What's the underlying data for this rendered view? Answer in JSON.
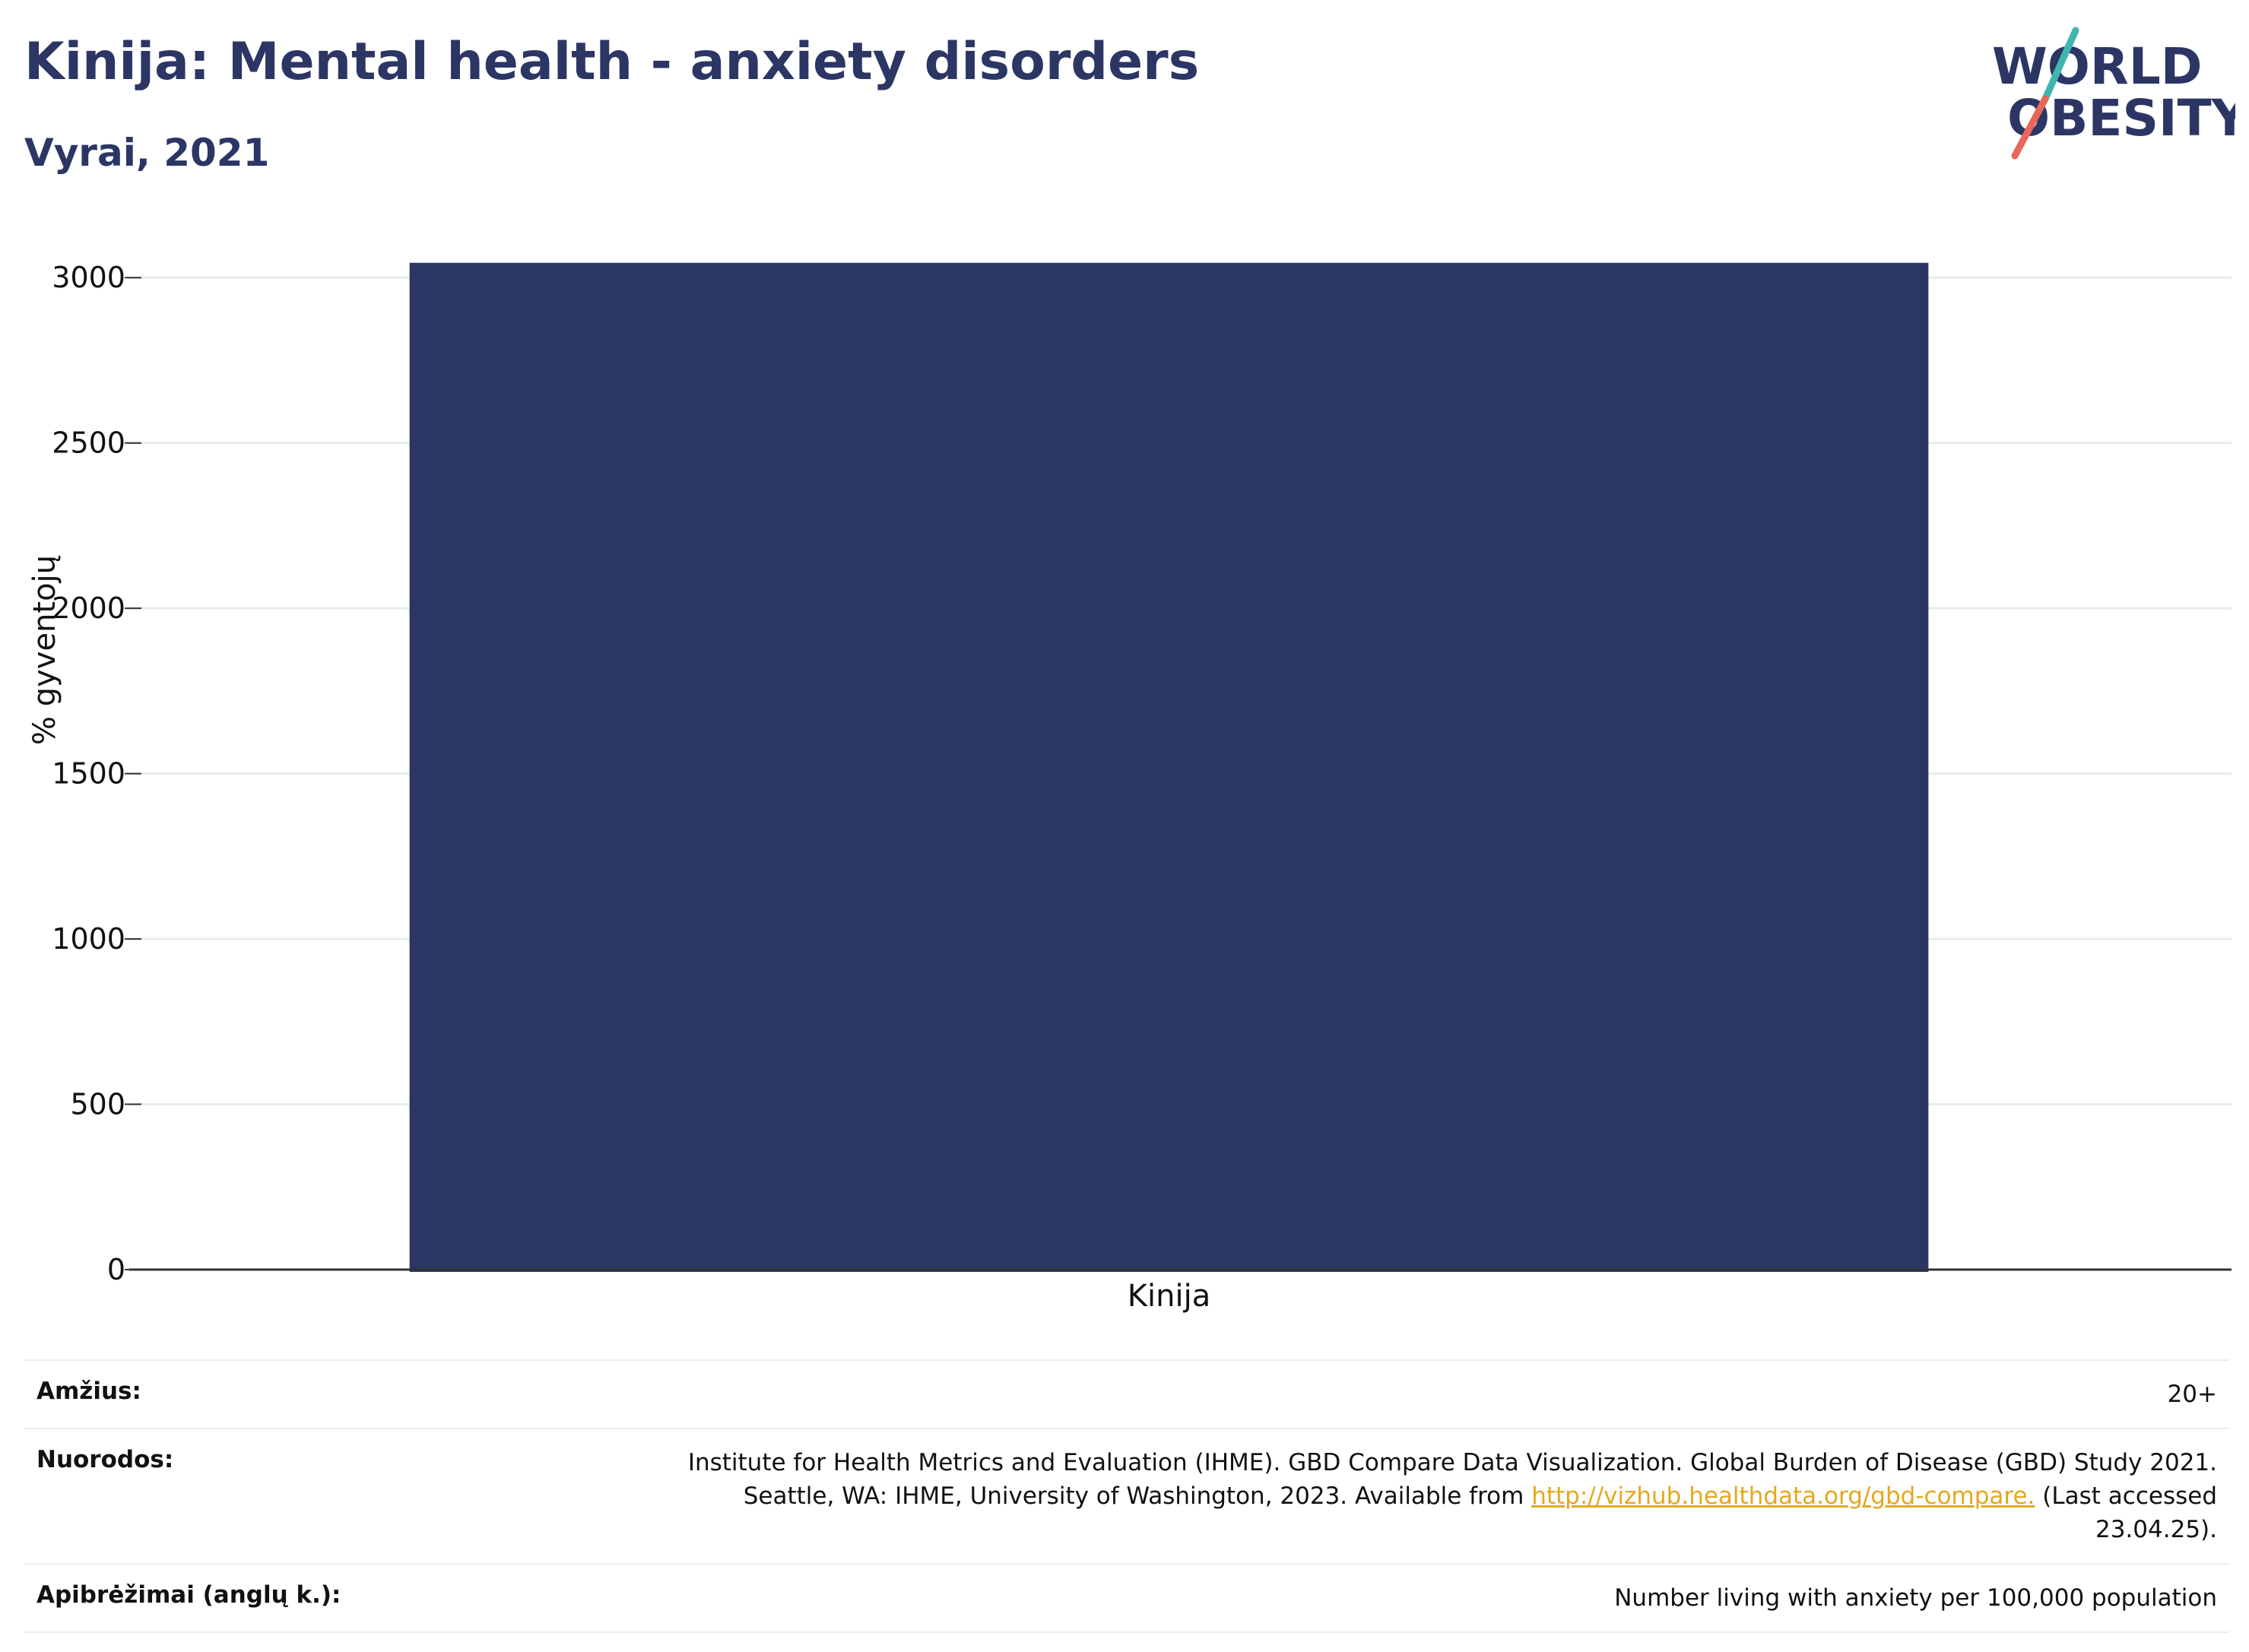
{
  "title": "Kinija: Mental health - anxiety disorders",
  "subtitle": "Vyrai, 2021",
  "logo": {
    "line1": "WORLD",
    "line2": "OBESITY",
    "colors": [
      "#2b3664",
      "#3fb6b0",
      "#e8665a"
    ]
  },
  "chart_data": {
    "type": "bar",
    "categories": [
      "Kinija"
    ],
    "values": [
      3045
    ],
    "ylabel": "% gyventojų",
    "xlabel": "",
    "ylim": [
      0,
      3150
    ],
    "yticks": [
      0,
      500,
      1000,
      1500,
      2000,
      2500,
      3000
    ],
    "grid": true,
    "bar_color": "#2b3664"
  },
  "info": {
    "age_label": "Amžius:",
    "age_value": "20+",
    "refs_label": "Nuorodos:",
    "refs_text_before": "Institute for Health Metrics and Evaluation (IHME). GBD Compare Data Visualization. Global Burden of Disease (GBD) Study 2021. Seattle, WA: IHME, University of Washington, 2023. Available from ",
    "refs_link": "http://vizhub.healthdata.org/gbd-compare.",
    "refs_text_after": " (Last accessed 23.04.25).",
    "defs_label": "Apibrėžimai (anglų k.):",
    "defs_value": "Number living with anxiety per 100,000 population"
  }
}
